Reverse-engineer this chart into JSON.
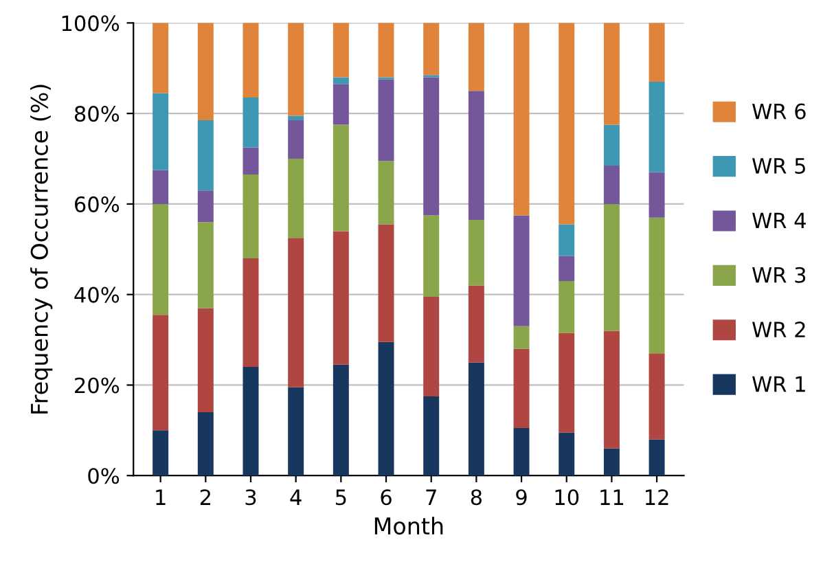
{
  "chart_data": {
    "type": "bar",
    "stacked": true,
    "xlabel": "Month",
    "ylabel": "Frequency of Occurrence (%)",
    "categories": [
      "1",
      "2",
      "3",
      "4",
      "5",
      "6",
      "7",
      "8",
      "9",
      "10",
      "11",
      "12"
    ],
    "series": [
      {
        "name": "WR 1",
        "color": "#17375e",
        "values": [
          10,
          14,
          24,
          19.5,
          24.5,
          29.5,
          17.5,
          25,
          10.5,
          9.5,
          6,
          8
        ]
      },
      {
        "name": "WR 2",
        "color": "#b04642",
        "values": [
          25.5,
          23,
          24,
          33,
          29.5,
          26,
          22,
          17,
          17.5,
          22,
          26,
          19
        ]
      },
      {
        "name": "WR 3",
        "color": "#8aa54a",
        "values": [
          24.5,
          19,
          18.5,
          17.5,
          23.5,
          14,
          18,
          14.5,
          5,
          11.5,
          28,
          30
        ]
      },
      {
        "name": "WR 4",
        "color": "#73579a",
        "values": [
          7.5,
          7,
          6,
          8.5,
          9,
          18,
          30.5,
          28.5,
          24.5,
          5.5,
          8.5,
          10
        ]
      },
      {
        "name": "WR 5",
        "color": "#3f98b3",
        "values": [
          17,
          15.5,
          11,
          1,
          1.5,
          0.5,
          0.5,
          0,
          0,
          7,
          9,
          20
        ]
      },
      {
        "name": "WR 6",
        "color": "#e0843c",
        "values": [
          15.5,
          21.5,
          16.5,
          20.5,
          12,
          12,
          11.5,
          15,
          42.5,
          44.5,
          22.5,
          13
        ]
      }
    ],
    "ylim": [
      0,
      100
    ],
    "yticks": [
      {
        "value": 0,
        "label": "0%"
      },
      {
        "value": 20,
        "label": "20%"
      },
      {
        "value": 40,
        "label": "40%"
      },
      {
        "value": 60,
        "label": "60%"
      },
      {
        "value": 80,
        "label": "80%"
      },
      {
        "value": 100,
        "label": "100%"
      }
    ],
    "grid": "y",
    "legend": "right"
  }
}
